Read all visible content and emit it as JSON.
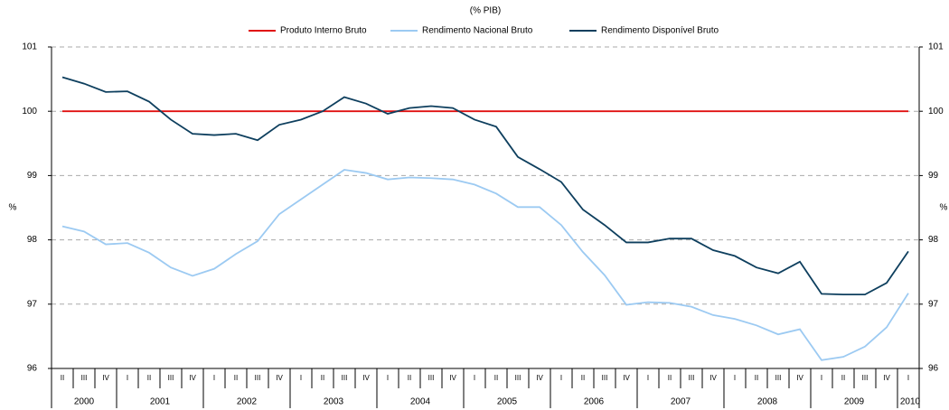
{
  "chart_data": {
    "type": "line",
    "subtitle": "(% PIB)",
    "ylabel": "%",
    "y2label": "%",
    "categories": [
      "II",
      "III",
      "IV",
      "I",
      "II",
      "III",
      "IV",
      "I",
      "II",
      "III",
      "IV",
      "I",
      "II",
      "III",
      "IV",
      "I",
      "II",
      "III",
      "IV",
      "I",
      "II",
      "III",
      "IV",
      "I",
      "II",
      "III",
      "IV",
      "I",
      "II",
      "III",
      "IV",
      "I",
      "II",
      "III",
      "IV",
      "I",
      "II",
      "III",
      "IV",
      "I"
    ],
    "years": [
      "2000",
      "2001",
      "2002",
      "2003",
      "2004",
      "2005",
      "2006",
      "2007",
      "2008",
      "2009",
      "2010"
    ],
    "series": [
      {
        "name": "Produto Interno Bruto",
        "color": "#e01010",
        "values": [
          100,
          100,
          100,
          100,
          100,
          100,
          100,
          100,
          100,
          100,
          100,
          100,
          100,
          100,
          100,
          100,
          100,
          100,
          100,
          100,
          100,
          100,
          100,
          100,
          100,
          100,
          100,
          100,
          100,
          100,
          100,
          100,
          100,
          100,
          100,
          100,
          100,
          100,
          100,
          100
        ]
      },
      {
        "name": "Rendimento Nacional Bruto",
        "color": "#9ccaf2",
        "values": [
          98.21,
          98.13,
          97.93,
          97.95,
          97.8,
          97.57,
          97.44,
          97.55,
          97.78,
          97.98,
          98.4,
          98.63,
          98.86,
          99.09,
          99.04,
          98.94,
          98.97,
          98.96,
          98.94,
          98.86,
          98.72,
          98.51,
          98.51,
          98.23,
          97.81,
          97.45,
          96.99,
          97.03,
          97.02,
          96.96,
          96.83,
          96.77,
          96.67,
          96.53,
          96.61,
          96.13,
          96.18,
          96.34,
          96.64,
          97.17
        ]
      },
      {
        "name": "Rendimento Disponível Bruto",
        "color": "#0e3f5e",
        "values": [
          100.53,
          100.43,
          100.3,
          100.31,
          100.15,
          99.87,
          99.65,
          99.63,
          99.65,
          99.55,
          99.79,
          99.87,
          100.0,
          100.22,
          100.12,
          99.96,
          100.05,
          100.08,
          100.05,
          99.87,
          99.76,
          99.29,
          99.1,
          98.9,
          98.47,
          98.23,
          97.96,
          97.96,
          98.02,
          98.02,
          97.84,
          97.75,
          97.57,
          97.48,
          97.66,
          97.16,
          97.15,
          97.15,
          97.33,
          97.82
        ]
      }
    ],
    "ylim": [
      96,
      101
    ],
    "yticks": [
      96,
      97,
      98,
      99,
      100,
      101
    ],
    "y2lim": [
      96,
      101
    ],
    "y2ticks": [
      96,
      97,
      98,
      99,
      100,
      101
    ],
    "grid": true,
    "legend": "top"
  }
}
